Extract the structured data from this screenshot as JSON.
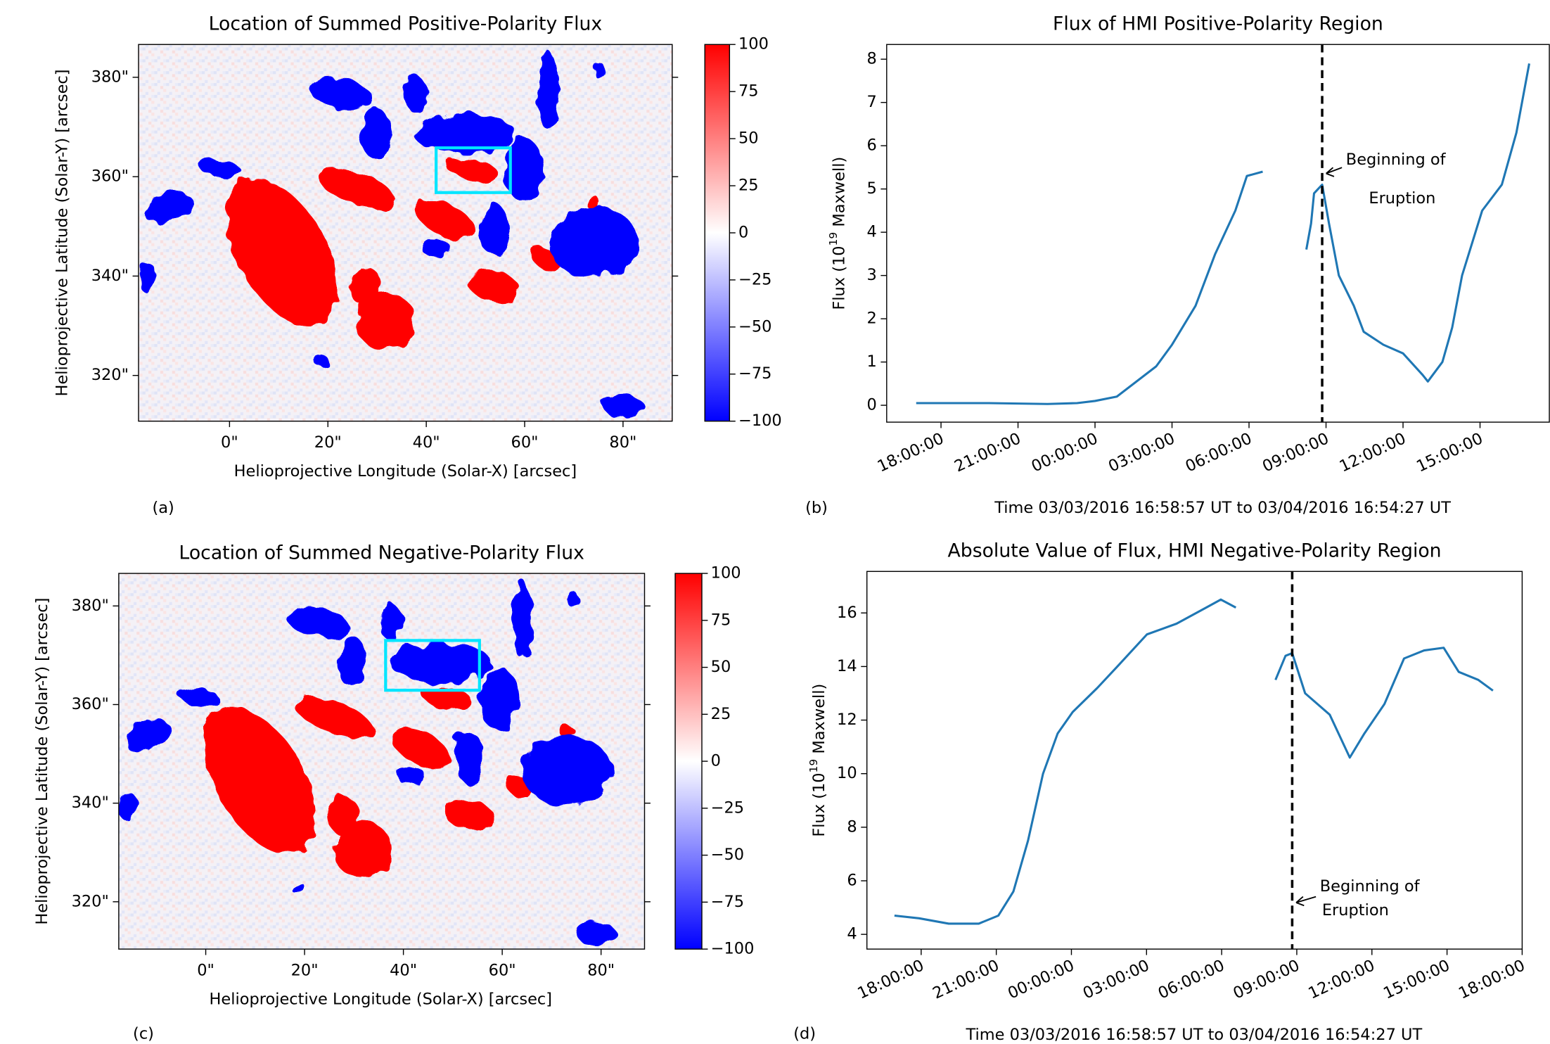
{
  "chart_data": [
    {
      "type": "image",
      "title": "Location of Summed Positive-Polarity Flux",
      "xlabel": "Helioprojective Longitude (Solar-X) [arcsec]",
      "ylabel": "Helioprojective Latitude (Solar-Y) [arcsec]",
      "xlim": [
        -18.5,
        90
      ],
      "ylim": [
        310.8,
        386.6
      ],
      "xticks": [
        {
          "value": 0,
          "label": "0\""
        },
        {
          "value": 20,
          "label": "20\""
        },
        {
          "value": 40,
          "label": "40\""
        },
        {
          "value": 60,
          "label": "60\""
        },
        {
          "value": 80,
          "label": "80\""
        }
      ],
      "yticks": [
        {
          "value": 320,
          "label": "320\""
        },
        {
          "value": 340,
          "label": "340\""
        },
        {
          "value": 360,
          "label": "360\""
        },
        {
          "value": 380,
          "label": "380\""
        }
      ],
      "colorbar": {
        "lim": [
          -100,
          100
        ],
        "colors": [
          "#0000ff",
          "#ffffff",
          "#ff0000"
        ],
        "ticks": [
          100,
          75,
          50,
          25,
          0,
          {
            "value": -25,
            "label": "−25"
          },
          {
            "value": -50,
            "label": "−50"
          },
          {
            "value": -75,
            "label": "−75"
          },
          {
            "value": -100,
            "label": "−100"
          }
        ]
      },
      "box": {
        "x": [
          42,
          57.1
        ],
        "y": [
          356.8,
          365.8
        ],
        "color": "#00e5ff"
      },
      "panel_label": "(a)"
    },
    {
      "type": "line",
      "title": "Flux of HMI Positive-Polarity Region",
      "xlabel": "Time 03/03/2016 16:58:57 UT to 03/04/2016 16:54:27 UT",
      "ylabel": {
        "text": "Flux (10",
        "sup": "19",
        "rest": " Maxwell)"
      },
      "color": "#1f77b4",
      "xlim": [
        "2016-03-03 15:53",
        "2016-03-04 17:42"
      ],
      "ylim": [
        -0.39,
        8.34
      ],
      "xticks": [
        {
          "value": "2016-03-03 18:00",
          "label": "18:00:00"
        },
        {
          "value": "2016-03-03 21:00",
          "label": "21:00:00"
        },
        {
          "value": "2016-03-04 00:00",
          "label": "00:00:00"
        },
        {
          "value": "2016-03-04 03:00",
          "label": "03:00:00"
        },
        {
          "value": "2016-03-04 06:00",
          "label": "06:00:00"
        },
        {
          "value": "2016-03-04 09:00",
          "label": "09:00:00"
        },
        {
          "value": "2016-03-04 12:00",
          "label": "12:00:00"
        },
        {
          "value": "2016-03-04 15:00",
          "label": "15:00:00"
        }
      ],
      "yticks": [
        0,
        1,
        2,
        3,
        4,
        5,
        6,
        7,
        8
      ],
      "x": [
        "2016-03-03 17:02",
        "2016-03-03 19:51",
        "2016-03-03 22:09",
        "2016-03-03 23:18",
        "2016-03-04 00:00",
        "2016-03-04 00:51",
        "2016-03-04 01:37",
        "2016-03-04 02:23",
        "2016-03-04 03:00",
        "2016-03-04 03:55",
        "2016-03-04 04:41",
        "2016-03-04 05:28",
        "2016-03-04 05:55",
        "2016-03-04 06:32",
        "2016-03-04 07:20",
        "2016-03-04 08:14",
        "2016-03-04 08:25",
        "2016-03-04 08:32",
        "2016-03-04 08:51",
        "2016-03-04 09:07",
        "2016-03-04 09:30",
        "2016-03-04 10:05",
        "2016-03-04 10:28",
        "2016-03-04 11:14",
        "2016-03-04 12:00",
        "2016-03-04 12:46",
        "2016-03-04 12:58",
        "2016-03-04 13:32",
        "2016-03-04 13:55",
        "2016-03-04 14:18",
        "2016-03-04 15:05",
        "2016-03-04 15:51",
        "2016-03-04 16:25",
        "2016-03-04 16:55"
      ],
      "values": [
        0.05,
        0.05,
        0.03,
        0.05,
        0.1,
        0.2,
        0.55,
        0.9,
        1.4,
        2.3,
        3.5,
        4.5,
        5.3,
        5.4,
        null,
        3.6,
        4.2,
        4.9,
        5.1,
        4.2,
        3.0,
        2.3,
        1.7,
        1.4,
        1.2,
        0.7,
        0.55,
        1.0,
        1.8,
        3.0,
        4.5,
        5.1,
        6.3,
        7.9
      ],
      "vline": "2016-03-04 08:51",
      "annotation": [
        "Beginning of",
        "Eruption"
      ],
      "panel_label": "(b)"
    },
    {
      "type": "image",
      "title": "Location of Summed Negative-Polarity Flux",
      "xlabel": "Helioprojective Longitude (Solar-X) [arcsec]",
      "ylabel": "Helioprojective Latitude (Solar-Y) [arcsec]",
      "xlim": [
        -17.6,
        88.8
      ],
      "ylim": [
        310.4,
        386.6
      ],
      "xticks": [
        {
          "value": 0,
          "label": "0\""
        },
        {
          "value": 20,
          "label": "20\""
        },
        {
          "value": 40,
          "label": "40\""
        },
        {
          "value": 60,
          "label": "60\""
        },
        {
          "value": 80,
          "label": "80\""
        }
      ],
      "yticks": [
        {
          "value": 320,
          "label": "320\""
        },
        {
          "value": 340,
          "label": "340\""
        },
        {
          "value": 360,
          "label": "360\""
        },
        {
          "value": 380,
          "label": "380\""
        }
      ],
      "colorbar": {
        "lim": [
          -100,
          100
        ],
        "colors": [
          "#0000ff",
          "#ffffff",
          "#ff0000"
        ],
        "ticks": [
          100,
          75,
          50,
          25,
          0,
          {
            "value": -25,
            "label": "−25"
          },
          {
            "value": -50,
            "label": "−50"
          },
          {
            "value": -75,
            "label": "−75"
          },
          {
            "value": -100,
            "label": "−100"
          }
        ]
      },
      "box": {
        "x": [
          36.4,
          55.4
        ],
        "y": [
          362.9,
          373
        ],
        "color": "#00e5ff"
      },
      "panel_label": "(c)"
    },
    {
      "type": "line",
      "title": "Absolute Value of Flux, HMI Negative-Polarity Region",
      "xlabel": "Time 03/03/2016 16:58:57 UT to 03/04/2016 16:54:27 UT",
      "ylabel": {
        "text": "Flux (10",
        "sup": "19",
        "rest": " Maxwell)"
      },
      "color": "#1f77b4",
      "xlim": [
        "2016-03-03 15:50",
        "2016-03-04 18:00"
      ],
      "ylim": [
        3.45,
        17.55
      ],
      "xticks": [
        {
          "value": "2016-03-03 18:00",
          "label": "18:00:00"
        },
        {
          "value": "2016-03-03 21:00",
          "label": "21:00:00"
        },
        {
          "value": "2016-03-04 00:00",
          "label": "00:00:00"
        },
        {
          "value": "2016-03-04 03:00",
          "label": "03:00:00"
        },
        {
          "value": "2016-03-04 06:00",
          "label": "06:00:00"
        },
        {
          "value": "2016-03-04 09:00",
          "label": "09:00:00"
        },
        {
          "value": "2016-03-04 12:00",
          "label": "12:00:00"
        },
        {
          "value": "2016-03-04 15:00",
          "label": "15:00:00"
        },
        {
          "value": "2016-03-04 18:00",
          "label": "18:00:00"
        }
      ],
      "yticks": [
        4,
        6,
        8,
        10,
        12,
        14,
        16
      ],
      "x": [
        "2016-03-03 16:56",
        "2016-03-03 17:55",
        "2016-03-03 19:06",
        "2016-03-03 20:18",
        "2016-03-03 21:05",
        "2016-03-03 21:41",
        "2016-03-03 22:16",
        "2016-03-03 22:52",
        "2016-03-03 23:27",
        "2016-03-04 00:03",
        "2016-03-04 01:02",
        "2016-03-04 01:50",
        "2016-03-04 03:01",
        "2016-03-04 04:12",
        "2016-03-04 05:23",
        "2016-03-04 05:58",
        "2016-03-04 06:34",
        "2016-03-04 07:20",
        "2016-03-04 08:09",
        "2016-03-04 08:33",
        "2016-03-04 08:49",
        "2016-03-04 09:20",
        "2016-03-04 10:19",
        "2016-03-04 11:07",
        "2016-03-04 11:42",
        "2016-03-04 12:30",
        "2016-03-04 13:17",
        "2016-03-04 14:05",
        "2016-03-04 14:52",
        "2016-03-04 15:28",
        "2016-03-04 16:15",
        "2016-03-04 16:50"
      ],
      "values": [
        4.7,
        4.6,
        4.4,
        4.4,
        4.7,
        5.6,
        7.5,
        10.0,
        11.5,
        12.3,
        13.2,
        14.0,
        15.2,
        15.6,
        16.2,
        16.5,
        16.2,
        null,
        13.5,
        14.4,
        14.5,
        13.0,
        12.2,
        10.6,
        11.5,
        12.6,
        14.3,
        14.6,
        14.7,
        13.8,
        13.5,
        13.1
      ],
      "vline": "2016-03-04 08:49",
      "annotation": [
        "Beginning of",
        "Eruption"
      ],
      "panel_label": "(d)"
    }
  ]
}
